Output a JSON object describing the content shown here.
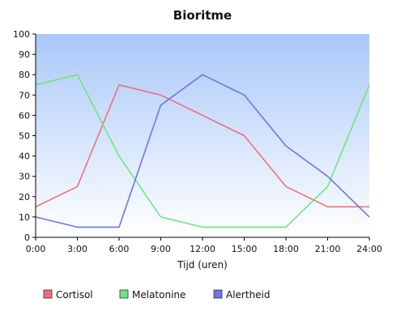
{
  "chart_data": {
    "type": "line",
    "title": "Bioritme",
    "xlabel": "Tijd (uren)",
    "ylabel": "",
    "categories": [
      "0:00",
      "3:00",
      "6:00",
      "9:00",
      "12:00",
      "15:00",
      "18:00",
      "21:00",
      "24:00"
    ],
    "ylim": [
      0,
      100
    ],
    "yticks": [
      0,
      10,
      20,
      30,
      40,
      50,
      60,
      70,
      80,
      90,
      100
    ],
    "grid": false,
    "legend_position": "bottom",
    "series": [
      {
        "name": "Cortisol",
        "color": "#f07078",
        "values": [
          15,
          25,
          75,
          70,
          60,
          50,
          25,
          15,
          15
        ]
      },
      {
        "name": "Melatonine",
        "color": "#6fe67a",
        "values": [
          75,
          80,
          40,
          10,
          5,
          5,
          5,
          25,
          75
        ]
      },
      {
        "name": "Alertheid",
        "color": "#6f75e6",
        "values": [
          10,
          5,
          5,
          65,
          80,
          70,
          45,
          30,
          10
        ]
      }
    ],
    "plot_background_gradient": [
      "#a9c8f8",
      "#ffffff"
    ]
  }
}
